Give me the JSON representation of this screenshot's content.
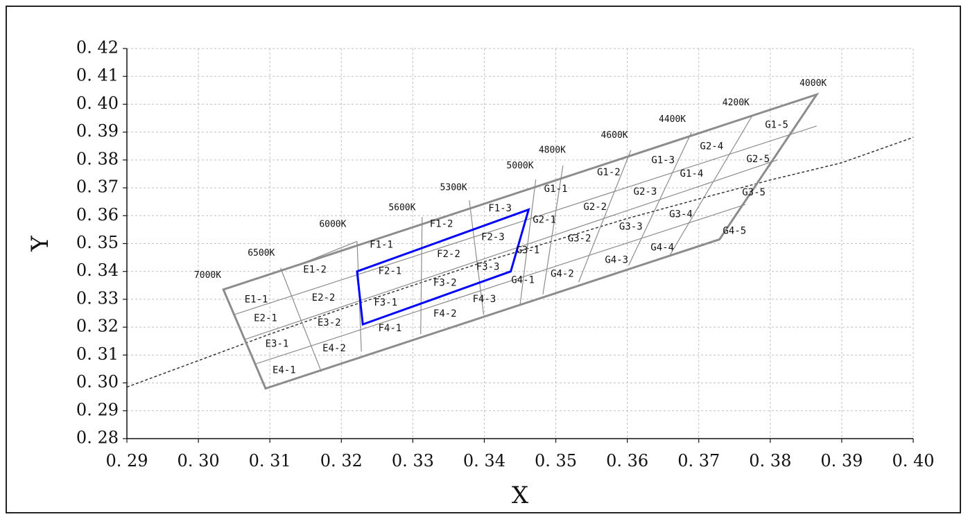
{
  "chart_data": {
    "type": "scatter",
    "xlabel": "X",
    "ylabel": "Y",
    "xlim": [
      0.29,
      0.4
    ],
    "ylim": [
      0.28,
      0.42
    ],
    "x_ticks": [
      "0. 29",
      "0. 30",
      "0. 31",
      "0. 32",
      "0. 33",
      "0. 34",
      "0. 35",
      "0. 36",
      "0. 37",
      "0. 38",
      "0. 39",
      "0. 40"
    ],
    "y_ticks": [
      "0. 42",
      "0. 41",
      "0. 40",
      "0. 39",
      "0. 38",
      "0. 37",
      "0. 36",
      "0. 35",
      "0. 34",
      "0. 33",
      "0. 32",
      "0. 31",
      "0. 30",
      "0. 29",
      "0. 28"
    ],
    "grid": true,
    "colors": {
      "grid": "#bfbfbf",
      "boundary": "#8c8c8c",
      "highlight": "#0000ff",
      "locus": "#333333"
    },
    "outline": [
      [
        0.3035,
        0.3335
      ],
      [
        0.3865,
        0.4035
      ],
      [
        0.3729,
        0.3515
      ],
      [
        0.3094,
        0.298
      ]
    ],
    "cct_lines": [
      {
        "label": "7000K",
        "top": [
          0.3035,
          0.3335
        ],
        "bottom": [
          0.3094,
          0.298
        ],
        "label_at": [
          0.3013,
          0.3385
        ]
      },
      {
        "label": "6500K",
        "top": [
          0.3115,
          0.3412
        ],
        "bottom": [
          0.3172,
          0.304
        ],
        "label_at": [
          0.3088,
          0.3465
        ]
      },
      {
        "label": "6000K",
        "top": [
          0.3222,
          0.3508
        ],
        "bottom": [
          0.3228,
          0.3112
        ],
        "label_at": [
          0.3188,
          0.3568
        ]
      },
      {
        "label": "5600K",
        "top": [
          0.3313,
          0.3595
        ],
        "bottom": [
          0.3311,
          0.3175
        ],
        "label_at": [
          0.3285,
          0.3628
        ]
      },
      {
        "label": "5300K",
        "top": [
          0.3379,
          0.3655
        ],
        "bottom": [
          0.3399,
          0.3245
        ],
        "label_at": [
          0.3357,
          0.37
        ]
      },
      {
        "label": "5000K",
        "top": [
          0.3472,
          0.373
        ],
        "bottom": [
          0.345,
          0.328
        ],
        "label_at": [
          0.345,
          0.3778
        ]
      },
      {
        "label": "4800K",
        "top": [
          0.351,
          0.378
        ],
        "bottom": [
          0.3482,
          0.3318
        ],
        "label_at": [
          0.3495,
          0.3835
        ]
      },
      {
        "label": "4600K",
        "top": [
          0.3605,
          0.3835
        ],
        "bottom": [
          0.3532,
          0.3362
        ],
        "label_at": [
          0.3582,
          0.3888
        ]
      },
      {
        "label": "4400K",
        "top": [
          0.369,
          0.39
        ],
        "bottom": [
          0.3602,
          0.3422
        ],
        "label_at": [
          0.3663,
          0.3945
        ]
      },
      {
        "label": "4200K",
        "top": [
          0.3775,
          0.396
        ],
        "bottom": [
          0.366,
          0.346
        ],
        "label_at": [
          0.3752,
          0.4005
        ]
      },
      {
        "label": "4000K",
        "top": [
          0.3865,
          0.4035
        ],
        "bottom": null,
        "label_at": [
          0.386,
          0.4075
        ]
      }
    ],
    "blue_quad": [
      [
        0.3222,
        0.34
      ],
      [
        0.3462,
        0.3622
      ],
      [
        0.3437,
        0.34
      ],
      [
        0.323,
        0.321
      ]
    ],
    "planckian_locus": [
      [
        0.29,
        0.2985
      ],
      [
        0.3,
        0.308
      ],
      [
        0.31,
        0.3175
      ],
      [
        0.32,
        0.3265
      ],
      [
        0.33,
        0.335
      ],
      [
        0.34,
        0.3435
      ],
      [
        0.35,
        0.3512
      ],
      [
        0.36,
        0.359
      ],
      [
        0.37,
        0.366
      ],
      [
        0.38,
        0.3728
      ],
      [
        0.39,
        0.379
      ],
      [
        0.4,
        0.3881
      ]
    ],
    "bins": [
      {
        "label": "E1-1",
        "x": 0.3081,
        "y": 0.3298
      },
      {
        "label": "E1-2",
        "x": 0.3163,
        "y": 0.3405
      },
      {
        "label": "E2-1",
        "x": 0.3094,
        "y": 0.3232
      },
      {
        "label": "E2-2",
        "x": 0.3175,
        "y": 0.3305
      },
      {
        "label": "E3-1",
        "x": 0.311,
        "y": 0.314
      },
      {
        "label": "E3-2",
        "x": 0.3183,
        "y": 0.3215
      },
      {
        "label": "E4-1",
        "x": 0.312,
        "y": 0.3045
      },
      {
        "label": "E4-2",
        "x": 0.319,
        "y": 0.3123
      },
      {
        "label": "F1-1",
        "x": 0.3256,
        "y": 0.3495
      },
      {
        "label": "F1-2",
        "x": 0.334,
        "y": 0.357
      },
      {
        "label": "F1-3",
        "x": 0.3422,
        "y": 0.3625
      },
      {
        "label": "F2-1",
        "x": 0.3268,
        "y": 0.34
      },
      {
        "label": "F2-2",
        "x": 0.335,
        "y": 0.3462
      },
      {
        "label": "F2-3",
        "x": 0.3412,
        "y": 0.3522
      },
      {
        "label": "F3-1",
        "x": 0.3262,
        "y": 0.3288
      },
      {
        "label": "F3-2",
        "x": 0.3345,
        "y": 0.3358
      },
      {
        "label": "F3-3",
        "x": 0.3405,
        "y": 0.3415
      },
      {
        "label": "F4-1",
        "x": 0.3268,
        "y": 0.3195
      },
      {
        "label": "F4-2",
        "x": 0.3345,
        "y": 0.3248
      },
      {
        "label": "F4-3",
        "x": 0.34,
        "y": 0.33
      },
      {
        "label": "G1-1",
        "x": 0.35,
        "y": 0.3695
      },
      {
        "label": "G1-2",
        "x": 0.3574,
        "y": 0.3755
      },
      {
        "label": "G1-3",
        "x": 0.365,
        "y": 0.3798
      },
      {
        "label": "G1-4",
        "x": 0.369,
        "y": 0.375
      },
      {
        "label": "G1-5",
        "x": 0.3809,
        "y": 0.3925
      },
      {
        "label": "G2-1",
        "x": 0.3484,
        "y": 0.3585
      },
      {
        "label": "G2-2",
        "x": 0.3555,
        "y": 0.363
      },
      {
        "label": "G2-3",
        "x": 0.3625,
        "y": 0.3685
      },
      {
        "label": "G2-4",
        "x": 0.3718,
        "y": 0.3848
      },
      {
        "label": "G2-5",
        "x": 0.3783,
        "y": 0.3802
      },
      {
        "label": "G3-1",
        "x": 0.3461,
        "y": 0.3475
      },
      {
        "label": "G3-2",
        "x": 0.3533,
        "y": 0.3518
      },
      {
        "label": "G3-3",
        "x": 0.3605,
        "y": 0.356
      },
      {
        "label": "G3-4",
        "x": 0.3675,
        "y": 0.3605
      },
      {
        "label": "G3-5",
        "x": 0.3777,
        "y": 0.3683
      },
      {
        "label": "G4-1",
        "x": 0.3454,
        "y": 0.3368
      },
      {
        "label": "G4-2",
        "x": 0.3509,
        "y": 0.339
      },
      {
        "label": "G4-3",
        "x": 0.3585,
        "y": 0.344
      },
      {
        "label": "G4-4",
        "x": 0.3649,
        "y": 0.3485
      },
      {
        "label": "G4-5",
        "x": 0.375,
        "y": 0.3545
      }
    ],
    "region_lines": [
      [
        [
          0.3115,
          0.3412
        ],
        [
          0.3172,
          0.304
        ]
      ],
      [
        [
          0.3222,
          0.3508
        ],
        [
          0.3228,
          0.3112
        ]
      ],
      [
        [
          0.3313,
          0.3595
        ],
        [
          0.3311,
          0.3175
        ]
      ],
      [
        [
          0.3379,
          0.3655
        ],
        [
          0.3399,
          0.3245
        ]
      ],
      [
        [
          0.3472,
          0.373
        ],
        [
          0.345,
          0.328
        ]
      ],
      [
        [
          0.351,
          0.378
        ],
        [
          0.3482,
          0.3318
        ]
      ],
      [
        [
          0.3605,
          0.3835
        ],
        [
          0.3532,
          0.3362
        ]
      ],
      [
        [
          0.369,
          0.39
        ],
        [
          0.3602,
          0.3422
        ]
      ],
      [
        [
          0.3775,
          0.396
        ],
        [
          0.366,
          0.346
        ]
      ],
      [
        [
          0.305,
          0.3245
        ],
        [
          0.3865,
          0.3922
        ]
      ],
      [
        [
          0.3064,
          0.3155
        ],
        [
          0.381,
          0.38
        ]
      ],
      [
        [
          0.308,
          0.3068
        ],
        [
          0.3765,
          0.364
        ]
      ],
      [
        [
          0.3129,
          0.3412
        ],
        [
          0.3222,
          0.3508
        ]
      ]
    ]
  }
}
